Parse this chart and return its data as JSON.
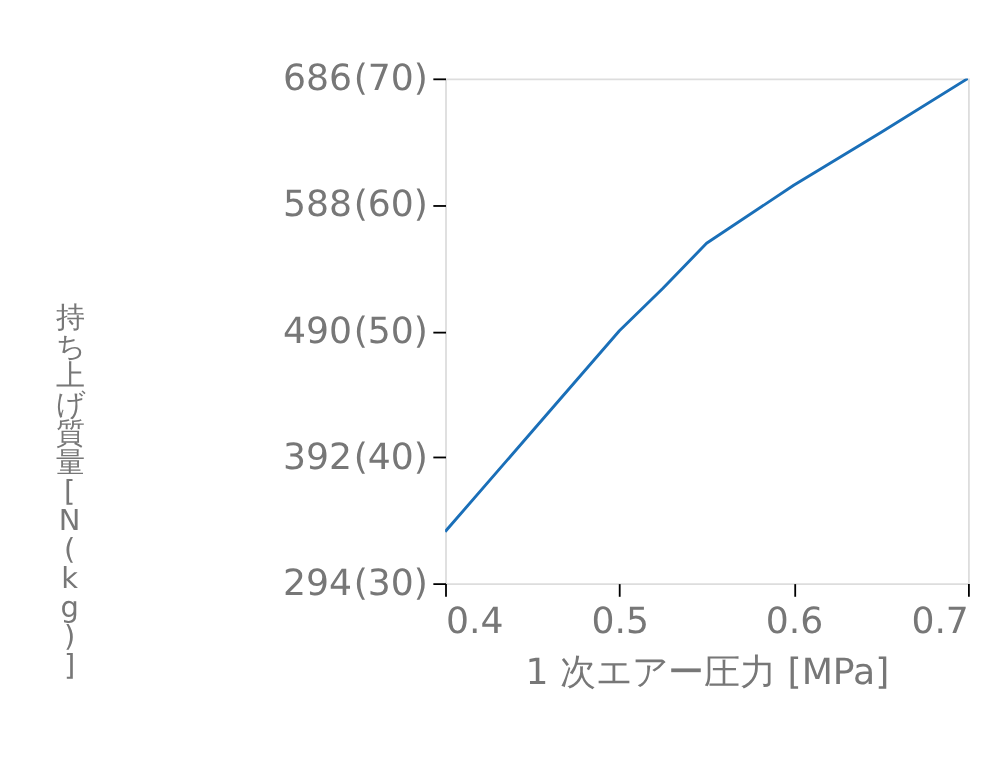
{
  "chart_data": {
    "type": "line",
    "xlabel": "1 次エアー圧力 [MPa]",
    "ylabel": "持ち上げ質量[N(kg)]",
    "x": [
      0.4,
      0.45,
      0.5,
      0.525,
      0.55,
      0.6,
      0.65,
      0.7
    ],
    "series": [
      {
        "color": "#1a6fb8",
        "values": [
          334,
          412,
          490,
          523,
          558,
          603,
          644,
          686
        ]
      }
    ],
    "xlim": [
      0.4,
      0.7
    ],
    "xticks": [
      0.4,
      0.5,
      0.6,
      0.7
    ],
    "ylim": [
      294,
      686
    ],
    "yticks": [
      294,
      392,
      490,
      588,
      686
    ],
    "y2lim": [
      30,
      70
    ],
    "y2ticks": [
      {
        "value": 30,
        "label": "(30)"
      },
      {
        "value": 40,
        "label": "(40)"
      },
      {
        "value": 50,
        "label": "(50)"
      },
      {
        "value": 60,
        "label": "(60)"
      },
      {
        "value": 70,
        "label": "(70)"
      }
    ],
    "grid": false,
    "marker": "none",
    "line_style": "solid"
  }
}
